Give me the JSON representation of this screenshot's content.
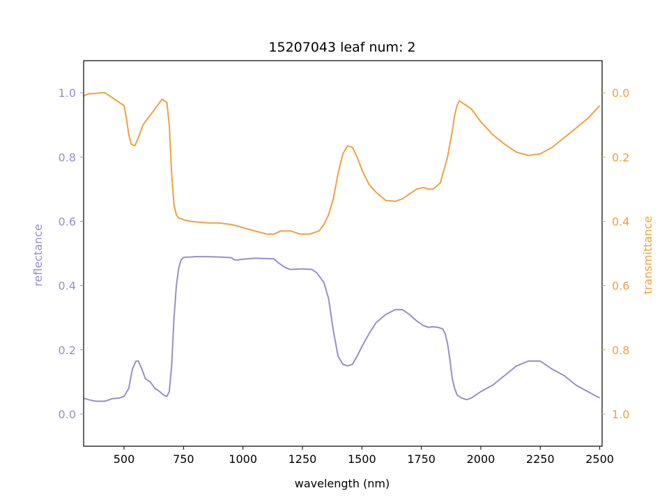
{
  "chart_data": {
    "type": "line",
    "title": "15207043 leaf num: 2",
    "xlabel": "wavelength (nm)",
    "ylabel_left": "reflectance",
    "ylabel_right": "transmittance",
    "xlim": [
      330,
      2510
    ],
    "ylim_left": [
      -0.1,
      1.1
    ],
    "ylim_right": [
      1.1,
      -0.1
    ],
    "right_axis_inverted": true,
    "grid": false,
    "x_ticks": [
      500,
      750,
      1000,
      1250,
      1500,
      1750,
      2000,
      2250,
      2500
    ],
    "x_tick_labels": [
      "500",
      "750",
      "1000",
      "1250",
      "1500",
      "1750",
      "2000",
      "2250",
      "2500"
    ],
    "y_left_ticks": [
      0.0,
      0.2,
      0.4,
      0.6,
      0.8,
      1.0
    ],
    "y_left_tick_labels": [
      "0.0",
      "0.2",
      "0.4",
      "0.6",
      "0.8",
      "1.0"
    ],
    "y_right_ticks": [
      0.0,
      0.2,
      0.4,
      0.6,
      0.8,
      1.0
    ],
    "y_right_tick_labels": [
      "0.0",
      "0.2",
      "0.4",
      "0.6",
      "0.8",
      "1.0"
    ],
    "colors": {
      "reflectance": "#9590c4",
      "transmittance": "#eda23e"
    },
    "series": [
      {
        "axis": "left",
        "x": [
          330,
          350,
          380,
          420,
          450,
          480,
          500,
          520,
          535,
          550,
          560,
          575,
          590,
          610,
          630,
          650,
          665,
          680,
          690,
          700,
          710,
          720,
          730,
          740,
          750,
          760,
          780,
          800,
          850,
          900,
          950,
          965,
          980,
          1000,
          1050,
          1100,
          1130,
          1150,
          1180,
          1200,
          1250,
          1290,
          1310,
          1340,
          1360,
          1380,
          1400,
          1420,
          1440,
          1460,
          1480,
          1500,
          1530,
          1560,
          1600,
          1640,
          1670,
          1700,
          1730,
          1760,
          1780,
          1800,
          1820,
          1840,
          1850,
          1860,
          1870,
          1880,
          1890,
          1900,
          1910,
          1920,
          1940,
          1960,
          1980,
          2000,
          2050,
          2100,
          2150,
          2200,
          2250,
          2300,
          2350,
          2400,
          2450,
          2500
        ],
        "values": [
          0.05,
          0.045,
          0.04,
          0.04,
          0.048,
          0.05,
          0.055,
          0.08,
          0.14,
          0.165,
          0.165,
          0.14,
          0.11,
          0.1,
          0.08,
          0.07,
          0.06,
          0.055,
          0.07,
          0.15,
          0.3,
          0.4,
          0.455,
          0.48,
          0.487,
          0.488,
          0.489,
          0.49,
          0.49,
          0.489,
          0.487,
          0.48,
          0.48,
          0.482,
          0.485,
          0.484,
          0.483,
          0.47,
          0.455,
          0.45,
          0.452,
          0.45,
          0.44,
          0.41,
          0.36,
          0.26,
          0.18,
          0.155,
          0.15,
          0.155,
          0.18,
          0.21,
          0.25,
          0.285,
          0.31,
          0.325,
          0.325,
          0.31,
          0.29,
          0.275,
          0.27,
          0.272,
          0.27,
          0.265,
          0.25,
          0.22,
          0.17,
          0.11,
          0.08,
          0.06,
          0.055,
          0.05,
          0.045,
          0.05,
          0.06,
          0.07,
          0.09,
          0.12,
          0.15,
          0.165,
          0.165,
          0.14,
          0.12,
          0.09,
          0.07,
          0.05
        ]
      },
      {
        "axis": "right",
        "x": [
          330,
          350,
          380,
          400,
          420,
          450,
          480,
          500,
          510,
          520,
          530,
          545,
          560,
          580,
          600,
          620,
          640,
          660,
          670,
          680,
          690,
          700,
          710,
          720,
          730,
          740,
          750,
          760,
          780,
          800,
          850,
          900,
          950,
          980,
          1000,
          1050,
          1100,
          1130,
          1160,
          1200,
          1240,
          1280,
          1320,
          1340,
          1360,
          1380,
          1400,
          1420,
          1440,
          1460,
          1480,
          1500,
          1530,
          1560,
          1600,
          1640,
          1670,
          1700,
          1730,
          1760,
          1780,
          1800,
          1830,
          1860,
          1880,
          1890,
          1900,
          1910,
          1920,
          1940,
          1960,
          1980,
          2000,
          2050,
          2100,
          2150,
          2200,
          2250,
          2300,
          2350,
          2400,
          2450,
          2500
        ],
        "values": [
          0.01,
          0.003,
          0.002,
          0.0,
          0.0,
          0.015,
          0.03,
          0.04,
          0.08,
          0.13,
          0.16,
          0.165,
          0.14,
          0.1,
          0.08,
          0.06,
          0.04,
          0.02,
          0.025,
          0.03,
          0.1,
          0.25,
          0.35,
          0.38,
          0.39,
          0.392,
          0.395,
          0.397,
          0.4,
          0.402,
          0.405,
          0.405,
          0.41,
          0.415,
          0.42,
          0.43,
          0.44,
          0.44,
          0.43,
          0.43,
          0.44,
          0.44,
          0.43,
          0.41,
          0.38,
          0.33,
          0.25,
          0.19,
          0.165,
          0.17,
          0.2,
          0.24,
          0.285,
          0.31,
          0.335,
          0.338,
          0.33,
          0.315,
          0.3,
          0.295,
          0.3,
          0.3,
          0.28,
          0.2,
          0.12,
          0.07,
          0.04,
          0.025,
          0.03,
          0.04,
          0.05,
          0.07,
          0.09,
          0.13,
          0.16,
          0.185,
          0.195,
          0.19,
          0.17,
          0.14,
          0.11,
          0.08,
          0.04
        ]
      }
    ]
  }
}
